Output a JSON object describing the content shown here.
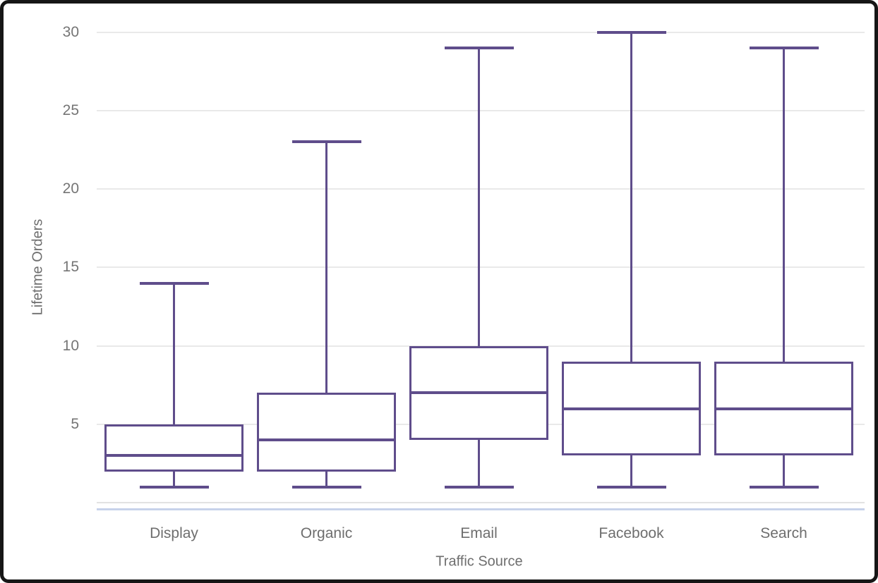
{
  "chart_data": {
    "type": "boxplot",
    "title": "",
    "xlabel": "Traffic Source",
    "ylabel": "Lifetime Orders",
    "categories": [
      "Display",
      "Organic",
      "Email",
      "Facebook",
      "Search"
    ],
    "series": [
      {
        "name": "Display",
        "min": 1,
        "q1": 2,
        "median": 3,
        "q3": 5,
        "max": 14
      },
      {
        "name": "Organic",
        "min": 1,
        "q1": 2,
        "median": 4,
        "q3": 7,
        "max": 23
      },
      {
        "name": "Email",
        "min": 1,
        "q1": 4,
        "median": 7,
        "q3": 10,
        "max": 29
      },
      {
        "name": "Facebook",
        "min": 1,
        "q1": 3,
        "median": 6,
        "q3": 9,
        "max": 30
      },
      {
        "name": "Search",
        "min": 1,
        "q1": 3,
        "median": 6,
        "q3": 9,
        "max": 29
      }
    ],
    "yticks": [
      "5",
      "10",
      "15",
      "20",
      "25",
      "30"
    ],
    "ylim": [
      0,
      30.8
    ],
    "grid": true,
    "legend": "none",
    "colors": {
      "box_stroke": "#5f4d8b",
      "box_fill": "#ffffff",
      "gridline": "#e9e9e9",
      "baseline": "#e2e2e2",
      "accent_bottom_line": "#c7d2ea",
      "tick_text": "#757575",
      "axis_title_text": "#6e6e6e",
      "window_border": "#161616"
    }
  }
}
